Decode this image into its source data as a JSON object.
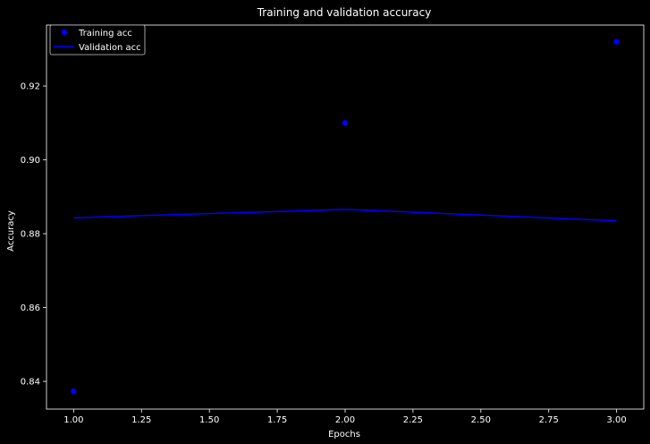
{
  "chart_data": {
    "type": "line",
    "title": "Training and validation accuracy",
    "xlabel": "Epochs",
    "ylabel": "Accuracy",
    "xlim": [
      0.9,
      3.1
    ],
    "ylim": [
      0.8325,
      0.9365
    ],
    "x_ticks": [
      1.0,
      1.25,
      1.5,
      1.75,
      2.0,
      2.25,
      2.5,
      2.75,
      3.0
    ],
    "x_tick_labels": [
      "1.00",
      "1.25",
      "1.50",
      "1.75",
      "2.00",
      "2.25",
      "2.50",
      "2.75",
      "3.00"
    ],
    "y_ticks": [
      0.84,
      0.86,
      0.88,
      0.9,
      0.92
    ],
    "y_tick_labels": [
      "0.84",
      "0.86",
      "0.88",
      "0.90",
      "0.92"
    ],
    "grid": false,
    "legend_position": "top-left",
    "series": [
      {
        "name": "Training acc",
        "style": "markers",
        "color": "#0000ff",
        "x": [
          1,
          2,
          3
        ],
        "y": [
          0.8373,
          0.91,
          0.932
        ]
      },
      {
        "name": "Validation acc",
        "style": "line",
        "color": "#0000ff",
        "x": [
          1,
          2,
          3
        ],
        "y": [
          0.8843,
          0.8866,
          0.8835
        ]
      }
    ]
  }
}
